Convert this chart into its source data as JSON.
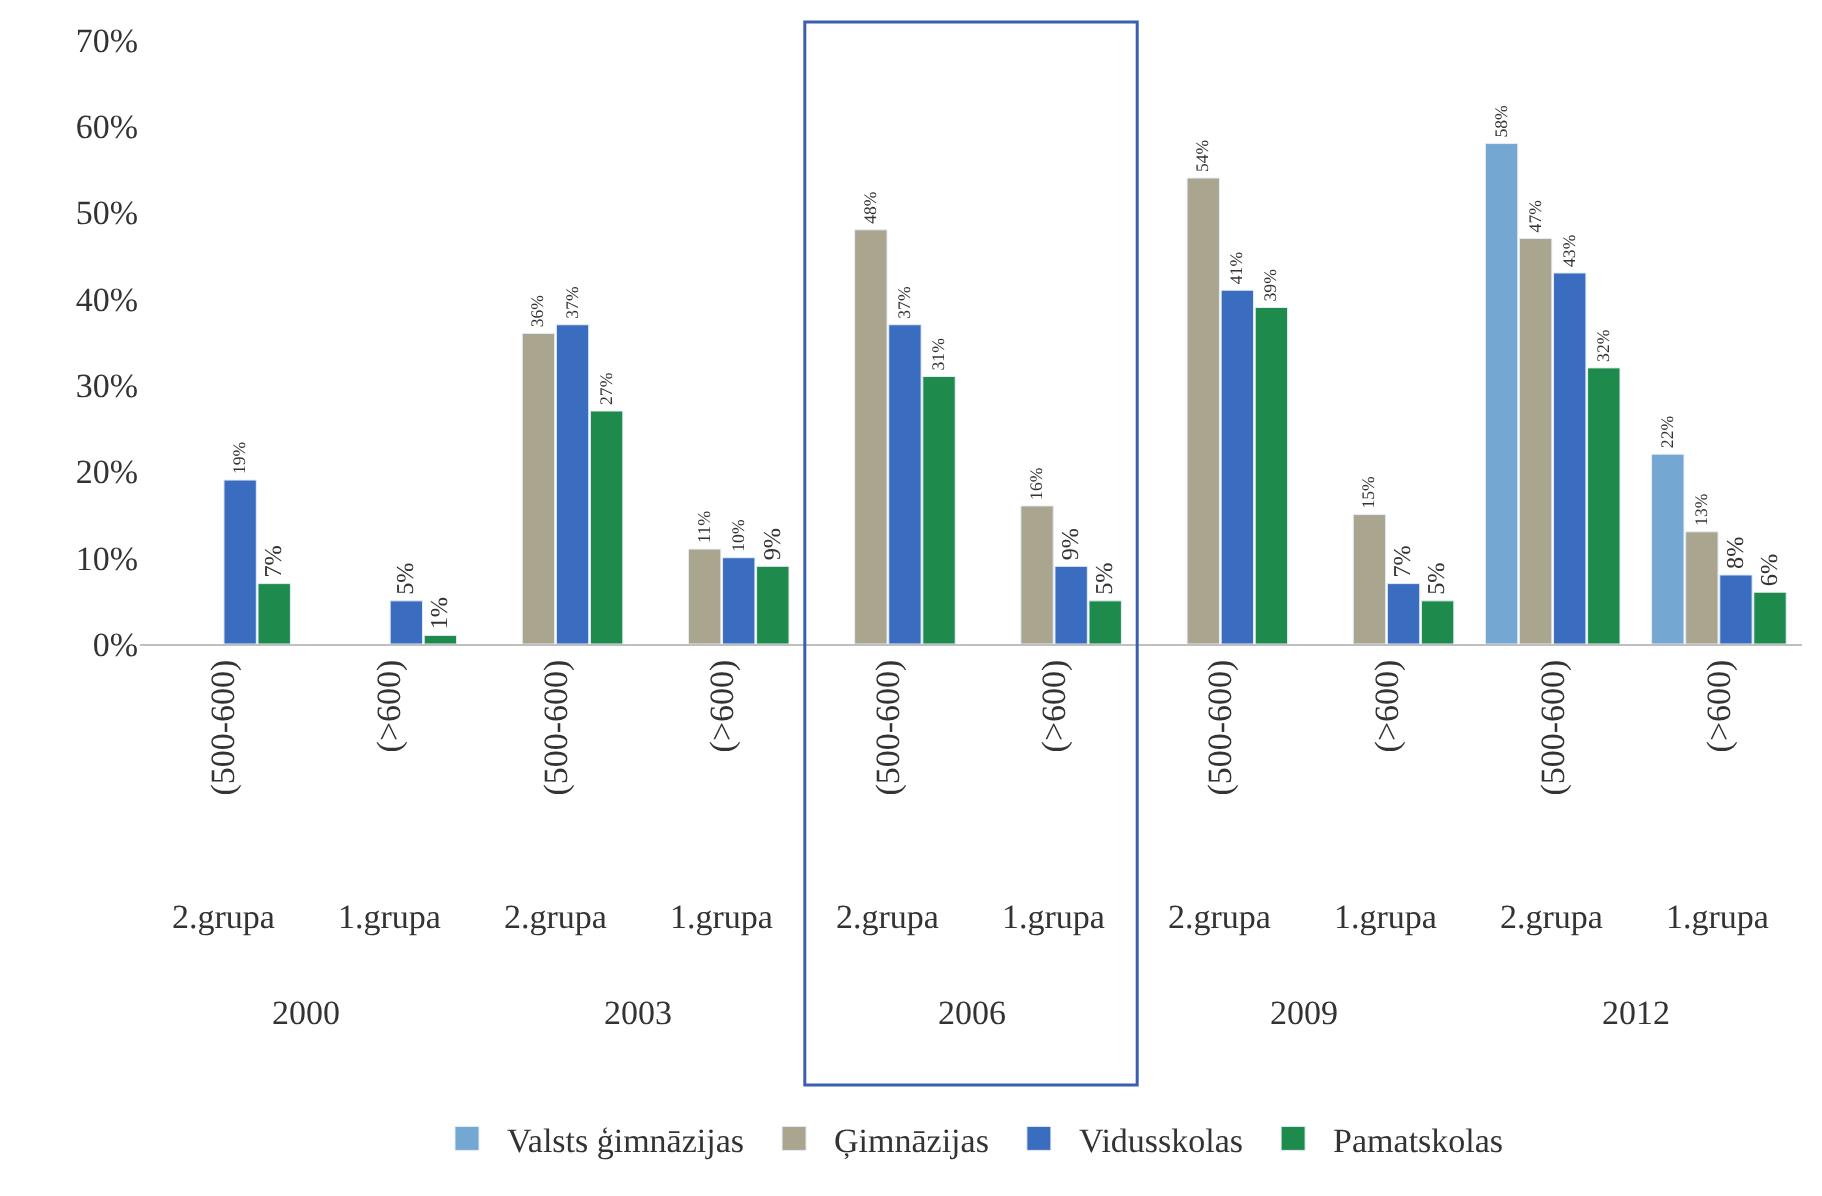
{
  "chart_data": {
    "type": "bar",
    "categories": [
      "(500-600)",
      "(>600)",
      "(500-600)",
      "(>600)",
      "(500-600)",
      "(>600)",
      "(500-600)",
      "(>600)",
      "(500-600)",
      "(>600)"
    ],
    "series": [
      {
        "name": "Valsts ģimnāzijas",
        "color": "#75a7d3",
        "values": [
          null,
          null,
          null,
          null,
          null,
          null,
          null,
          null,
          58,
          22
        ],
        "value_labels": [
          null,
          null,
          null,
          null,
          null,
          null,
          null,
          null,
          "58%",
          "22%"
        ]
      },
      {
        "name": "Ģimnāzijas",
        "color": "#a9a58e",
        "values": [
          null,
          null,
          36,
          11,
          48,
          16,
          54,
          15,
          47,
          13
        ],
        "value_labels": [
          null,
          null,
          "36%",
          "11%",
          "48%",
          "16%",
          "54%",
          "15%",
          "47%",
          "13%"
        ]
      },
      {
        "name": "Vidusskolas",
        "color": "#3a6cc0",
        "values": [
          19,
          5,
          37,
          10,
          37,
          9,
          41,
          7,
          43,
          8
        ],
        "value_labels": [
          "19%",
          "5%",
          "37%",
          "10%",
          "37%",
          "9%",
          "41%",
          "7%",
          "43%",
          "8%"
        ]
      },
      {
        "name": "Pamatskolas",
        "color": "#1e8a4c",
        "values": [
          7,
          1,
          27,
          9,
          31,
          5,
          39,
          5,
          32,
          6
        ],
        "value_labels": [
          "7%",
          "1%",
          "27%",
          "9%",
          "31%",
          "5%",
          "39%",
          "5%",
          "32%",
          "6%"
        ]
      }
    ],
    "annotations": [
      "2.grupa",
      "1.grupa",
      "2.grupa",
      "1.grupa",
      "2.grupa",
      "1.grupa",
      "2.grupa",
      "1.grupa",
      "2.grupa",
      "1.grupa",
      "2000",
      "2003",
      "2006",
      "2009",
      "2012"
    ],
    "ylim": [
      0,
      70
    ],
    "yticks": [
      {
        "value": 0,
        "label": "0%"
      },
      {
        "value": 10,
        "label": "10%"
      },
      {
        "value": 20,
        "label": "20%"
      },
      {
        "value": 30,
        "label": "30%"
      },
      {
        "value": 40,
        "label": "40%"
      },
      {
        "value": 50,
        "label": "50%"
      },
      {
        "value": 60,
        "label": "60%"
      },
      {
        "value": 70,
        "label": "70%"
      }
    ],
    "grid": false,
    "legend": "bottom"
  }
}
